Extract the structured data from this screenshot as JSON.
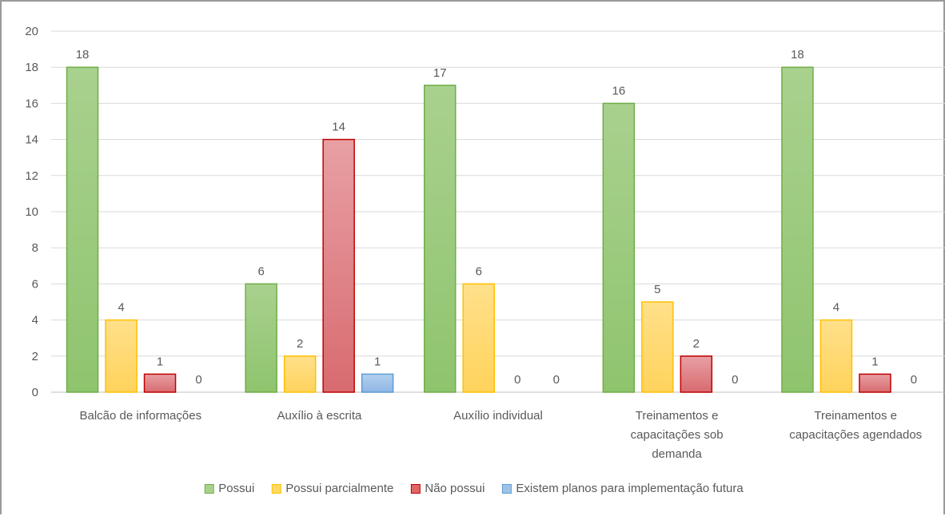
{
  "chart_data": {
    "type": "bar",
    "categories": [
      [
        "Balcão de informações"
      ],
      [
        "Auxílio à escrita"
      ],
      [
        "Auxílio individual"
      ],
      [
        "Treinamentos  e",
        "capacitações sob",
        "demanda"
      ],
      [
        "Treinamentos e",
        "capacitações agendados"
      ]
    ],
    "series": [
      {
        "name": "Possui",
        "values": [
          18,
          6,
          17,
          16,
          18
        ]
      },
      {
        "name": "Possui parcialmente",
        "values": [
          4,
          2,
          6,
          5,
          4
        ]
      },
      {
        "name": "Não possui",
        "values": [
          1,
          14,
          0,
          2,
          1
        ]
      },
      {
        "name": "Existem planos para implementação futura",
        "values": [
          0,
          1,
          0,
          0,
          0
        ]
      }
    ],
    "ylim": [
      0,
      20
    ],
    "yticks": [
      0,
      2,
      4,
      6,
      8,
      10,
      12,
      14,
      16,
      18,
      20
    ],
    "grid": true,
    "legend": "bottom",
    "colors": {
      "fill": [
        "#a9d18e",
        "#ffd966",
        "#e06666",
        "#9dc3e6"
      ],
      "stroke": [
        "#70ad47",
        "#ffc000",
        "#c00000",
        "#5b9bd5"
      ]
    }
  }
}
